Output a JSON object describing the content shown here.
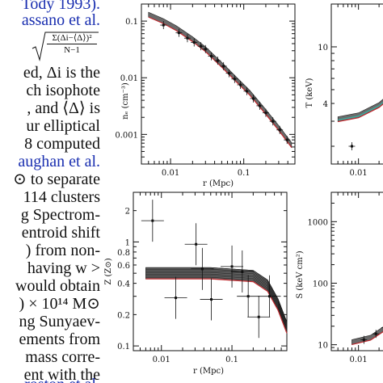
{
  "text_column": {
    "lines": [
      "Tody 1993).",
      "assano et al.",
      "",
      "",
      "ed, Δi is the",
      "ch isophote",
      ", and ⟨Δ⟩ is",
      "ur elliptical",
      "8 computed",
      "aughan et al.",
      "⊙ to separate",
      "114 clusters",
      "g Spectrom-",
      "entroid shift",
      ") from non-",
      "having w >",
      "would obtain",
      ") × 10¹⁴ M⊙",
      "ng Sunyaev-",
      "ements from",
      "mass corre-",
      "ent with the",
      "roston et al."
    ],
    "formula_numerator": "Σ(Δi−⟨Δ⟩)²",
    "formula_denominator": "N−1"
  },
  "panels": {
    "ne": {
      "ylabel": "nₑ (cm⁻³)",
      "xlabel": "r (Mpc)",
      "yticks": [
        "0.1",
        "0.01",
        "0.001"
      ],
      "xticks": [
        "0.01",
        "0.1"
      ]
    },
    "T": {
      "ylabel": "T (keV)",
      "yticks": [
        "10",
        "4"
      ],
      "xticks": [
        "0.01"
      ]
    },
    "Z": {
      "ylabel": "Z (Z⊙)",
      "xlabel": "r (Mpc)",
      "yticks": [
        "2",
        "1",
        "0.8",
        "0.6",
        "0.4",
        "0.2",
        "0.1"
      ],
      "xticks": [
        "0.01",
        "0.1"
      ]
    },
    "S": {
      "ylabel": "S (keV cm²)",
      "yticks": [
        "1000",
        "100",
        "10"
      ],
      "xticks": [
        "0.01"
      ]
    }
  },
  "chart_data": [
    {
      "type": "scatter",
      "panel": "ne",
      "xlabel": "r (Mpc)",
      "ylabel": "nₑ (cm⁻³)",
      "x_scale": "log",
      "y_scale": "log",
      "xlim": [
        0.004,
        0.5
      ],
      "ylim": [
        0.0003,
        0.2
      ],
      "points": [
        {
          "x": 0.008,
          "y": 0.085
        },
        {
          "x": 0.013,
          "y": 0.062
        },
        {
          "x": 0.017,
          "y": 0.05
        },
        {
          "x": 0.021,
          "y": 0.042
        },
        {
          "x": 0.026,
          "y": 0.036
        },
        {
          "x": 0.03,
          "y": 0.032
        },
        {
          "x": 0.036,
          "y": 0.024
        },
        {
          "x": 0.044,
          "y": 0.02
        },
        {
          "x": 0.053,
          "y": 0.016
        },
        {
          "x": 0.063,
          "y": 0.012
        },
        {
          "x": 0.075,
          "y": 0.0095
        },
        {
          "x": 0.09,
          "y": 0.0075
        },
        {
          "x": 0.11,
          "y": 0.0058
        },
        {
          "x": 0.135,
          "y": 0.0043
        },
        {
          "x": 0.165,
          "y": 0.0032
        },
        {
          "x": 0.2,
          "y": 0.0024
        },
        {
          "x": 0.25,
          "y": 0.0017
        },
        {
          "x": 0.31,
          "y": 0.0012
        },
        {
          "x": 0.39,
          "y": 0.0008
        }
      ],
      "model": [
        {
          "x": 0.005,
          "y": 0.13
        },
        {
          "x": 0.008,
          "y": 0.1
        },
        {
          "x": 0.012,
          "y": 0.075
        },
        {
          "x": 0.02,
          "y": 0.048
        },
        {
          "x": 0.03,
          "y": 0.032
        },
        {
          "x": 0.05,
          "y": 0.017
        },
        {
          "x": 0.08,
          "y": 0.0092
        },
        {
          "x": 0.12,
          "y": 0.0055
        },
        {
          "x": 0.2,
          "y": 0.0025
        },
        {
          "x": 0.3,
          "y": 0.0013
        },
        {
          "x": 0.45,
          "y": 0.00065
        }
      ]
    },
    {
      "type": "scatter",
      "panel": "T",
      "ylabel": "T (keV)",
      "x_scale": "log",
      "y_scale": "log",
      "xlim": [
        0.004,
        0.03
      ],
      "ylim": [
        1.5,
        20
      ],
      "points": [
        {
          "x": 0.008,
          "y": 2.0
        }
      ],
      "model": [
        {
          "x": 0.005,
          "y": 3.1
        },
        {
          "x": 0.01,
          "y": 3.3
        },
        {
          "x": 0.02,
          "y": 3.9
        },
        {
          "x": 0.03,
          "y": 4.6
        }
      ]
    },
    {
      "type": "scatter",
      "panel": "Z",
      "xlabel": "r (Mpc)",
      "ylabel": "Z (Z⊙)",
      "x_scale": "log",
      "y_scale": "log",
      "xlim": [
        0.004,
        0.6
      ],
      "ylim": [
        0.09,
        3
      ],
      "points": [
        {
          "x": 0.0075,
          "y": 1.6
        },
        {
          "x": 0.031,
          "y": 0.95
        },
        {
          "x": 0.038,
          "y": 0.55
        },
        {
          "x": 0.016,
          "y": 0.29
        },
        {
          "x": 0.051,
          "y": 0.28
        },
        {
          "x": 0.1,
          "y": 0.58
        },
        {
          "x": 0.14,
          "y": 0.52
        },
        {
          "x": 0.17,
          "y": 0.3
        },
        {
          "x": 0.24,
          "y": 0.19
        },
        {
          "x": 0.34,
          "y": 0.3
        }
      ],
      "model": [
        {
          "x": 0.006,
          "y": 0.5
        },
        {
          "x": 0.05,
          "y": 0.5
        },
        {
          "x": 0.2,
          "y": 0.47
        },
        {
          "x": 0.32,
          "y": 0.38
        },
        {
          "x": 0.45,
          "y": 0.25
        },
        {
          "x": 0.6,
          "y": 0.15
        }
      ]
    },
    {
      "type": "scatter",
      "panel": "S",
      "ylabel": "S (keV cm²)",
      "x_scale": "log",
      "y_scale": "log",
      "xlim": [
        0.004,
        0.03
      ],
      "ylim": [
        8,
        3000
      ],
      "points": [
        {
          "x": 0.012,
          "y": 12
        },
        {
          "x": 0.018,
          "y": 15
        },
        {
          "x": 0.024,
          "y": 19
        }
      ],
      "model": [
        {
          "x": 0.008,
          "y": 11
        },
        {
          "x": 0.015,
          "y": 13
        },
        {
          "x": 0.025,
          "y": 19
        },
        {
          "x": 0.03,
          "y": 23
        }
      ]
    }
  ]
}
